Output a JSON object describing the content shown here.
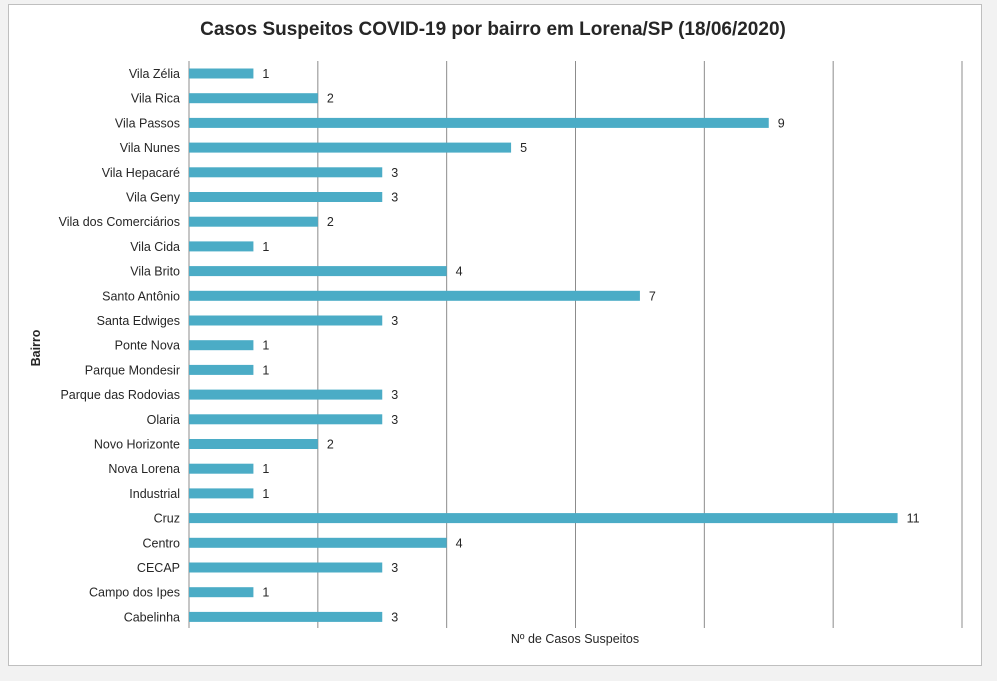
{
  "chart_data": {
    "type": "bar",
    "orientation": "horizontal",
    "title": "Casos Suspeitos COVID-19 por bairro em Lorena/SP (18/06/2020)",
    "xlabel": "Nº de Casos Suspeitos",
    "ylabel": "Bairro",
    "xlim": [
      0,
      12
    ],
    "grid": true,
    "bar_color": "#4bacc6",
    "categories": [
      "Vila Zélia",
      "Vila Rica",
      "Vila Passos",
      "Vila Nunes",
      "Vila Hepacaré",
      "Vila Geny",
      "Vila dos Comerciários",
      "Vila Cida",
      "Vila Brito",
      "Santo Antônio",
      "Santa Edwiges",
      "Ponte Nova",
      "Parque Mondesir",
      "Parque das Rodovias",
      "Olaria",
      "Novo Horizonte",
      "Nova Lorena",
      "Industrial",
      "Cruz",
      "Centro",
      "CECAP",
      "Campo dos Ipes",
      "Cabelinha"
    ],
    "values": [
      1,
      2,
      9,
      5,
      3,
      3,
      2,
      1,
      4,
      7,
      3,
      1,
      1,
      3,
      3,
      2,
      1,
      1,
      11,
      4,
      3,
      1,
      3
    ]
  }
}
